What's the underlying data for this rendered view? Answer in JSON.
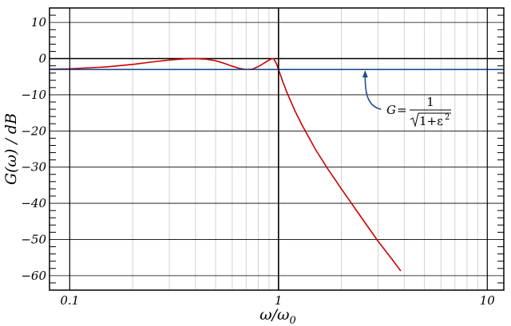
{
  "chart_data": {
    "type": "line",
    "title": "",
    "xlabel": "ω/ω",
    "xlabel_sub": "0",
    "ylabel": "G(ω) / dB",
    "xscale": "log",
    "xlim": [
      0.08,
      12
    ],
    "ylim": [
      -64,
      14
    ],
    "x_ticks": [
      {
        "value": 0.1,
        "label": "0.1"
      },
      {
        "value": 1,
        "label": "1"
      },
      {
        "value": 10,
        "label": "10"
      }
    ],
    "y_ticks": [
      {
        "value": 10,
        "label": "10"
      },
      {
        "value": 0,
        "label": "0"
      },
      {
        "value": -10,
        "label": "−10"
      },
      {
        "value": -20,
        "label": "−20"
      },
      {
        "value": -30,
        "label": "−30"
      },
      {
        "value": -40,
        "label": "−40"
      },
      {
        "value": -50,
        "label": "−50"
      },
      {
        "value": -60,
        "label": "−60"
      }
    ],
    "grid": true,
    "series": [
      {
        "color": "#cc0000",
        "points": [
          [
            0.08,
            -2.9
          ],
          [
            0.1,
            -2.8
          ],
          [
            0.15,
            -2.3
          ],
          [
            0.2,
            -1.6
          ],
          [
            0.25,
            -0.9
          ],
          [
            0.3,
            -0.4
          ],
          [
            0.35,
            -0.08
          ],
          [
            0.4,
            0.0
          ],
          [
            0.45,
            -0.15
          ],
          [
            0.5,
            -0.6
          ],
          [
            0.55,
            -1.3
          ],
          [
            0.6,
            -2.1
          ],
          [
            0.65,
            -2.7
          ],
          [
            0.7,
            -3.0
          ],
          [
            0.75,
            -2.9
          ],
          [
            0.8,
            -2.2
          ],
          [
            0.85,
            -1.3
          ],
          [
            0.9,
            -0.4
          ],
          [
            0.93,
            0.0
          ],
          [
            0.95,
            -0.1
          ],
          [
            0.98,
            -1.5
          ],
          [
            1.0,
            -3.0
          ],
          [
            1.05,
            -6.5
          ],
          [
            1.1,
            -9.5
          ],
          [
            1.2,
            -14.5
          ],
          [
            1.3,
            -18.5
          ],
          [
            1.5,
            -25
          ],
          [
            1.7,
            -30
          ],
          [
            2.0,
            -36
          ],
          [
            2.5,
            -44
          ],
          [
            3.0,
            -50.5
          ],
          [
            3.5,
            -55.5
          ],
          [
            3.85,
            -58.7
          ]
        ]
      },
      {
        "color": "#1f4f8f",
        "points": [
          [
            0.08,
            -3.0
          ],
          [
            12,
            -3.0
          ]
        ]
      }
    ],
    "annotation": {
      "lhs": "G",
      "equals": "=",
      "numerator": "1",
      "radicand": "1+ε",
      "exponent": "2",
      "arrow_to": [
        2.6,
        -3.0
      ]
    }
  }
}
